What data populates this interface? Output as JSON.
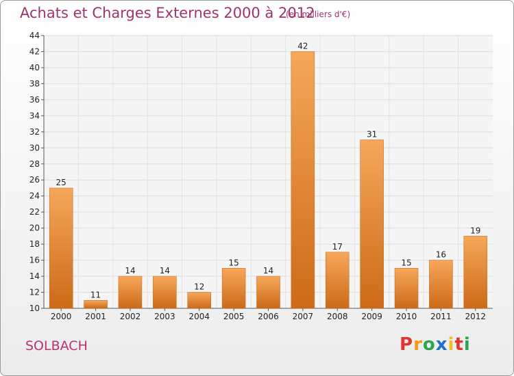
{
  "header": {
    "title": "Achats et Charges Externes 2000 à 2012",
    "subtitle": "(en milliers d'€)"
  },
  "footer": {
    "commune": "SOLBACH",
    "logo_letters": [
      "P",
      "r",
      "o",
      "x",
      "i",
      "t",
      "i"
    ],
    "logo_colors": [
      "#e3342f",
      "#f59a12",
      "#2aa64b",
      "#1f6fd1",
      "#f0c020",
      "#e3342f",
      "#2aa64b"
    ]
  },
  "chart_data": {
    "type": "bar",
    "categories": [
      "2000",
      "2001",
      "2002",
      "2003",
      "2004",
      "2005",
      "2006",
      "2007",
      "2008",
      "2009",
      "2010",
      "2011",
      "2012"
    ],
    "values": [
      25,
      11,
      14,
      14,
      12,
      15,
      14,
      42,
      17,
      31,
      15,
      16,
      19
    ],
    "ylim": [
      10,
      44
    ],
    "yticks": [
      10,
      12,
      14,
      16,
      18,
      20,
      22,
      24,
      26,
      28,
      30,
      32,
      34,
      36,
      38,
      40,
      42,
      44
    ],
    "grid": true,
    "bar_color_top": "#f6a75a",
    "bar_color_bottom": "#cc6a18",
    "title": "Achats et Charges Externes 2000 à 2012",
    "xlabel": "",
    "ylabel": ""
  }
}
